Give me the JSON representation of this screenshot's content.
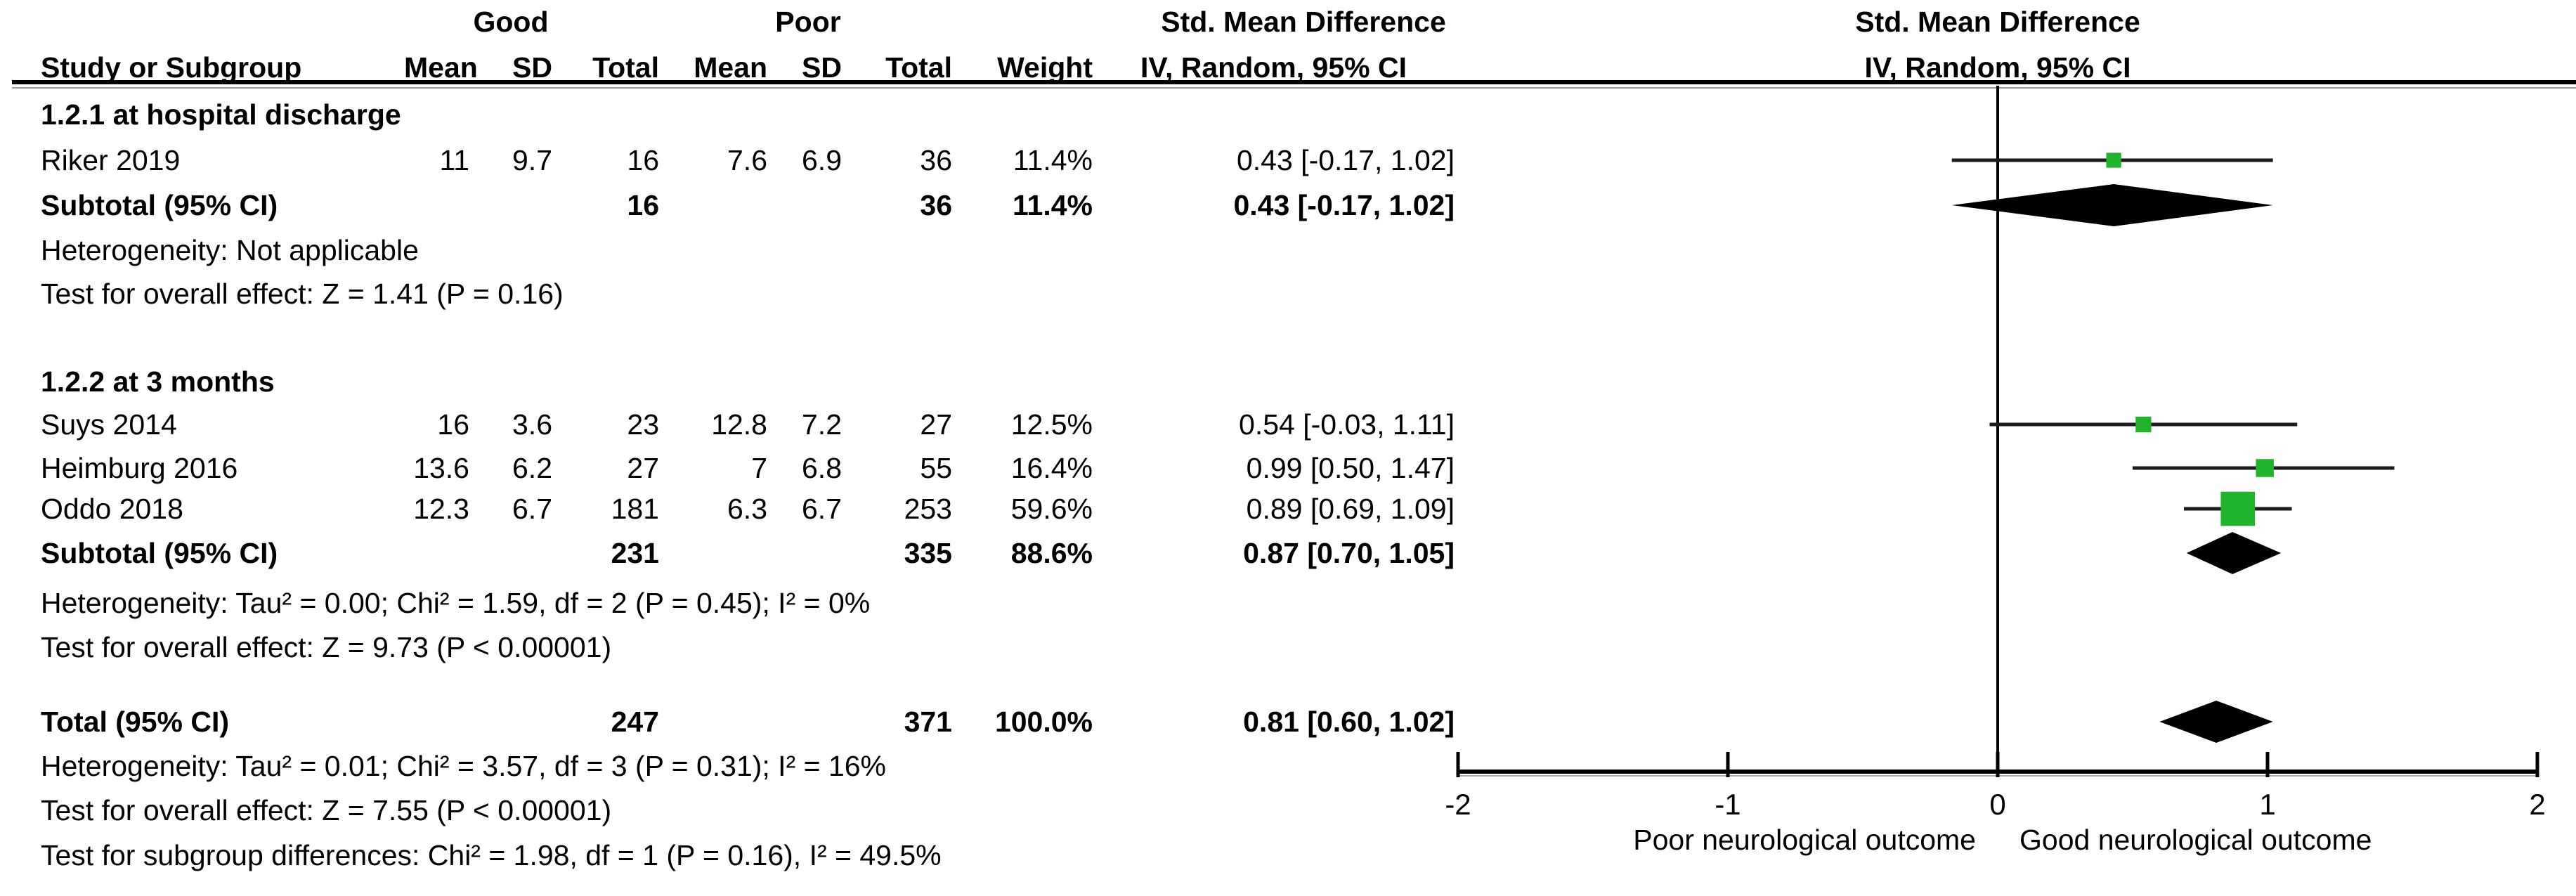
{
  "table": {
    "group_headers": {
      "good": "Good",
      "poor": "Poor",
      "smd_left": "Std. Mean Difference",
      "smd_right": "Std. Mean Difference"
    },
    "col_headers": {
      "study": "Study or Subgroup",
      "mean1": "Mean",
      "sd1": "SD",
      "total1": "Total",
      "mean2": "Mean",
      "sd2": "SD",
      "total2": "Total",
      "weight": "Weight",
      "ci": "IV, Random, 95% CI",
      "ci_right": "IV, Random, 95% CI"
    },
    "sections": [
      {
        "title": "1.2.1 at hospital discharge",
        "rows": [
          {
            "study": "Riker 2019",
            "mean1": "11",
            "sd1": "9.7",
            "total1": "16",
            "mean2": "7.6",
            "sd2": "6.9",
            "total2": "36",
            "weight": "11.4%",
            "ci": "0.43 [-0.17, 1.02]"
          }
        ],
        "subtotal": {
          "study": "Subtotal (95% CI)",
          "total1": "16",
          "total2": "36",
          "weight": "11.4%",
          "ci": "0.43 [-0.17, 1.02]"
        },
        "heterogeneity": "Heterogeneity: Not applicable",
        "overall": "Test for overall effect: Z = 1.41 (P = 0.16)"
      },
      {
        "title": "1.2.2 at 3 months",
        "rows": [
          {
            "study": "Suys 2014",
            "mean1": "16",
            "sd1": "3.6",
            "total1": "23",
            "mean2": "12.8",
            "sd2": "7.2",
            "total2": "27",
            "weight": "12.5%",
            "ci": "0.54 [-0.03, 1.11]"
          },
          {
            "study": "Heimburg 2016",
            "mean1": "13.6",
            "sd1": "6.2",
            "total1": "27",
            "mean2": "7",
            "sd2": "6.8",
            "total2": "55",
            "weight": "16.4%",
            "ci": "0.99 [0.50, 1.47]"
          },
          {
            "study": "Oddo 2018",
            "mean1": "12.3",
            "sd1": "6.7",
            "total1": "181",
            "mean2": "6.3",
            "sd2": "6.7",
            "total2": "253",
            "weight": "59.6%",
            "ci": "0.89 [0.69, 1.09]"
          }
        ],
        "subtotal": {
          "study": "Subtotal (95% CI)",
          "total1": "231",
          "total2": "335",
          "weight": "88.6%",
          "ci": "0.87 [0.70, 1.05]"
        },
        "heterogeneity": "Heterogeneity: Tau² = 0.00; Chi² = 1.59, df = 2 (P = 0.45); I² = 0%",
        "overall": "Test for overall effect: Z = 9.73 (P < 0.00001)"
      }
    ],
    "total": {
      "study": "Total (95% CI)",
      "total1": "247",
      "total2": "371",
      "weight": "100.0%",
      "ci": "0.81 [0.60, 1.02]"
    },
    "total_heterogeneity": "Heterogeneity: Tau² = 0.01; Chi² = 3.57, df = 3 (P = 0.31); I² = 16%",
    "total_overall": "Test for overall effect: Z = 7.55 (P < 0.00001)",
    "subgroup_diff": "Test for subgroup differences: Chi² = 1.98, df = 1 (P = 0.16), I² = 49.5%"
  },
  "chart_data": {
    "type": "forest",
    "effect_measure": "Std. Mean Difference",
    "model": "IV, Random, 95% CI",
    "x_axis": {
      "min": -2,
      "max": 2,
      "ticks": [
        "-2",
        "-1",
        "0",
        "1",
        "2"
      ],
      "left_label": "Poor neurological outcome",
      "right_label": "Good neurological outcome"
    },
    "marker_color": "#22B32C",
    "line_color": "#1c1c1c",
    "studies": [
      {
        "name": "Riker 2019",
        "row": "riker",
        "est": 0.43,
        "lo": -0.17,
        "hi": 1.02,
        "weight": 11.4
      },
      {
        "name": "Suys 2014",
        "row": "suys",
        "est": 0.54,
        "lo": -0.03,
        "hi": 1.11,
        "weight": 12.5
      },
      {
        "name": "Heimburg 2016",
        "row": "heim",
        "est": 0.99,
        "lo": 0.5,
        "hi": 1.47,
        "weight": 16.4
      },
      {
        "name": "Oddo 2018",
        "row": "oddo",
        "est": 0.89,
        "lo": 0.69,
        "hi": 1.09,
        "weight": 59.6
      }
    ],
    "diamonds": [
      {
        "name": "Subtotal at hospital discharge",
        "row": "sub1",
        "est": 0.43,
        "lo": -0.17,
        "hi": 1.02
      },
      {
        "name": "Subtotal at 3 months",
        "row": "sub2",
        "est": 0.87,
        "lo": 0.7,
        "hi": 1.05
      },
      {
        "name": "Total",
        "row": "total",
        "est": 0.81,
        "lo": 0.6,
        "hi": 1.02
      }
    ]
  }
}
